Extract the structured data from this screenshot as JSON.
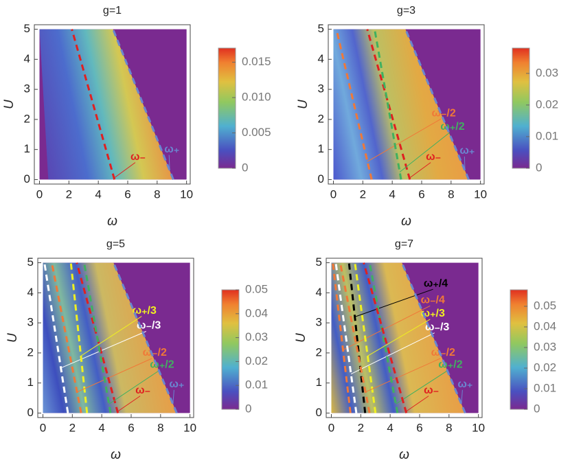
{
  "chart_data": [
    {
      "type": "heatmap",
      "title": "g=1",
      "xlabel": "ω",
      "ylabel": "U",
      "xlim": [
        -0.35,
        10.25
      ],
      "ylim": [
        -0.15,
        5.15
      ],
      "xticks": [
        0,
        2,
        4,
        6,
        8,
        10
      ],
      "yticks": [
        0,
        1,
        2,
        3,
        4,
        5
      ],
      "colorbar_lim": [
        0,
        0.017
      ],
      "colorbar_ticks": [
        0,
        0.005,
        {
          "value": 0.01,
          "label": "0.010"
        },
        0.015
      ],
      "series": [
        {
          "name": "ω₋",
          "color": "#e02020",
          "x": [
            5.1,
            2.2
          ],
          "y": [
            0,
            5
          ]
        },
        {
          "name": "ω₊",
          "color": "#6a86d0",
          "x": [
            9.1,
            5.0
          ],
          "y": [
            0,
            5
          ]
        }
      ]
    },
    {
      "type": "heatmap",
      "title": "g=3",
      "xlabel": "ω",
      "ylabel": "U",
      "xlim": [
        -0.35,
        10.25
      ],
      "ylim": [
        -0.15,
        5.15
      ],
      "xticks": [
        0,
        2,
        4,
        6,
        8,
        10
      ],
      "yticks": [
        0,
        1,
        2,
        3,
        4,
        5
      ],
      "colorbar_lim": [
        0,
        0.038
      ],
      "colorbar_ticks": [
        0,
        0.01,
        0.02,
        0.03
      ],
      "series": [
        {
          "name": "ω₋/2",
          "color": "#f07838",
          "x": [
            2.6,
            0.2
          ],
          "y": [
            0,
            5
          ]
        },
        {
          "name": "ω₋",
          "color": "#e02020",
          "x": [
            5.2,
            2.3
          ],
          "y": [
            0,
            5
          ]
        },
        {
          "name": "ω₊/2",
          "color": "#40b060",
          "x": [
            4.6,
            2.8
          ],
          "y": [
            0,
            5
          ]
        },
        {
          "name": "ω₊",
          "color": "#6a86d0",
          "x": [
            9.2,
            4.9
          ],
          "y": [
            0,
            5
          ]
        }
      ]
    },
    {
      "type": "heatmap",
      "title": "g=5",
      "xlabel": "ω",
      "ylabel": "U",
      "xlim": [
        -0.35,
        10.25
      ],
      "ylim": [
        -0.15,
        5.15
      ],
      "xticks": [
        0,
        2,
        4,
        6,
        8,
        10
      ],
      "yticks": [
        0,
        1,
        2,
        3,
        4,
        5
      ],
      "colorbar_lim": [
        0,
        0.05
      ],
      "colorbar_ticks": [
        0,
        0.01,
        0.02,
        0.03,
        0.04,
        0.05
      ],
      "series": [
        {
          "name": "ω₋/3",
          "color": "#ffffff",
          "x": [
            1.7,
            0.1
          ],
          "y": [
            0,
            5
          ]
        },
        {
          "name": "ω₊/3",
          "color": "#f0f020",
          "x": [
            3.0,
            1.9
          ],
          "y": [
            0,
            5
          ]
        },
        {
          "name": "ω₋/2",
          "color": "#f07838",
          "x": [
            2.6,
            0.6
          ],
          "y": [
            0,
            5
          ]
        },
        {
          "name": "ω₋",
          "color": "#e02020",
          "x": [
            5.1,
            2.3
          ],
          "y": [
            0,
            5
          ]
        },
        {
          "name": "ω₊/2",
          "color": "#40b060",
          "x": [
            4.6,
            2.8
          ],
          "y": [
            0,
            5
          ]
        },
        {
          "name": "ω₊",
          "color": "#6a86d0",
          "x": [
            9.1,
            4.8
          ],
          "y": [
            0,
            5
          ]
        }
      ]
    },
    {
      "type": "heatmap",
      "title": "g=7",
      "xlabel": "ω",
      "ylabel": "U",
      "xlim": [
        -0.35,
        10.25
      ],
      "ylim": [
        -0.15,
        5.15
      ],
      "xticks": [
        0,
        2,
        4,
        6,
        8,
        10
      ],
      "yticks": [
        0,
        1,
        2,
        3,
        4,
        5
      ],
      "colorbar_lim": [
        0,
        0.058
      ],
      "colorbar_ticks": [
        0,
        0.01,
        0.02,
        0.03,
        0.04,
        0.05
      ],
      "series": [
        {
          "name": "ω₊/4",
          "color": "#000000",
          "x": [
            2.3,
            1.2
          ],
          "y": [
            0,
            5
          ]
        },
        {
          "name": "ω₋/4",
          "color": "#f07838",
          "x": [
            1.3,
            0.1
          ],
          "y": [
            0,
            5
          ]
        },
        {
          "name": "ω₊/3",
          "color": "#f0f020",
          "x": [
            3.0,
            1.6
          ],
          "y": [
            0,
            5
          ]
        },
        {
          "name": "ω₋/3",
          "color": "#ffffff",
          "x": [
            1.7,
            0.3
          ],
          "y": [
            0,
            5
          ]
        },
        {
          "name": "ω₋/2",
          "color": "#f07838",
          "x": [
            2.6,
            0.6
          ],
          "y": [
            0,
            5
          ]
        },
        {
          "name": "ω₊/2",
          "color": "#40b060",
          "x": [
            4.5,
            2.6
          ],
          "y": [
            0,
            5
          ]
        },
        {
          "name": "ω₋",
          "color": "#e02020",
          "x": [
            5.1,
            2.2
          ],
          "y": [
            0,
            5
          ]
        },
        {
          "name": "ω₊",
          "color": "#6a86d0",
          "x": [
            9.1,
            4.8
          ],
          "y": [
            0,
            5
          ]
        }
      ]
    }
  ]
}
